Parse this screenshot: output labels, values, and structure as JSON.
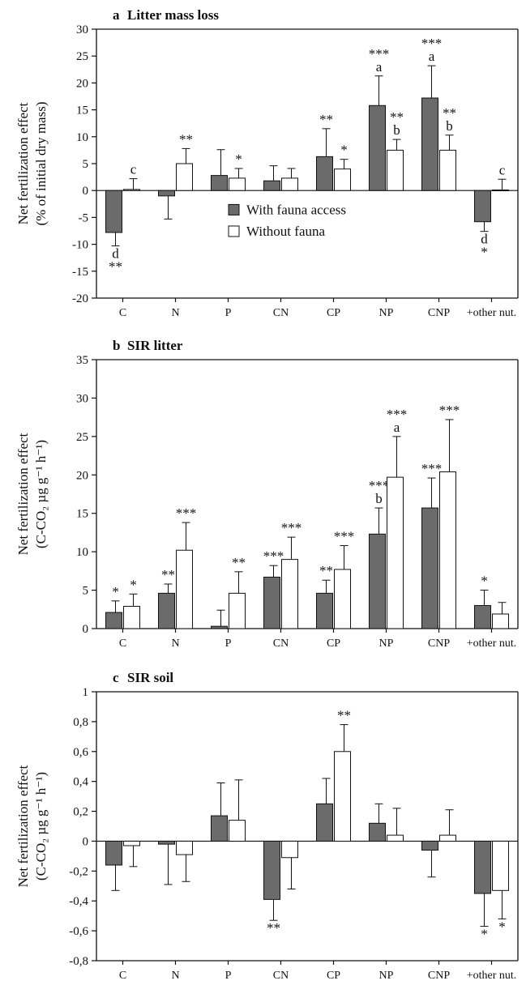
{
  "legend": {
    "with_fauna": "With fauna access",
    "without_fauna": "Without fauna"
  },
  "colors": {
    "with_fauna": "#6b6b6b",
    "without_fauna": "#ffffff",
    "stroke": "#111111"
  },
  "chart_data": [
    {
      "type": "bar",
      "panel_letter": "a",
      "title": "Litter mass loss",
      "ylabel_line1": "Net fertilization effect",
      "ylabel_line2": "(% of initial dry mass)",
      "categories": [
        "C",
        "N",
        "P",
        "CN",
        "CP",
        "NP",
        "CNP",
        "+other nut."
      ],
      "ylim": [
        -20,
        30
      ],
      "yticks": [
        -20,
        -15,
        -10,
        -5,
        0,
        5,
        10,
        15,
        20,
        25,
        30
      ],
      "ytick_labels": [
        "-20",
        "-15",
        "-10",
        "-5",
        "0",
        "5",
        "10",
        "15",
        "20",
        "25",
        "30"
      ],
      "legend_inside": true,
      "series": [
        {
          "name": "With fauna access",
          "values": [
            -7.8,
            -1.0,
            2.8,
            1.8,
            6.3,
            15.8,
            17.2,
            -5.8
          ],
          "errors": [
            2.5,
            4.3,
            4.8,
            2.8,
            5.2,
            5.5,
            6.0,
            1.8
          ],
          "annotations": [
            "d\n**",
            "",
            "",
            "",
            "**",
            "***\na",
            "***\na",
            "d\n*"
          ]
        },
        {
          "name": "Without fauna",
          "values": [
            0.2,
            5.0,
            2.3,
            2.3,
            4.0,
            7.5,
            7.5,
            0.1
          ],
          "errors": [
            2.0,
            2.8,
            1.8,
            1.8,
            1.8,
            2.0,
            2.8,
            2.0
          ],
          "annotations": [
            "c",
            "**",
            "*",
            "",
            "*",
            "**\nb",
            "**\nb",
            "c"
          ]
        }
      ]
    },
    {
      "type": "bar",
      "panel_letter": "b",
      "title": "SIR litter",
      "ylabel_line1": "Net fertilization effect",
      "ylabel_line2": "(C-CO₂ µg g⁻¹ h⁻¹)",
      "categories": [
        "C",
        "N",
        "P",
        "CN",
        "CP",
        "NP",
        "CNP",
        "+other nut."
      ],
      "ylim": [
        0,
        35
      ],
      "yticks": [
        0,
        5,
        10,
        15,
        20,
        25,
        30,
        35
      ],
      "ytick_labels": [
        "0",
        "5",
        "10",
        "15",
        "20",
        "25",
        "30",
        "35"
      ],
      "series": [
        {
          "name": "With fauna access",
          "values": [
            2.1,
            4.6,
            0.3,
            6.7,
            4.6,
            12.3,
            15.7,
            3.0
          ],
          "errors": [
            1.5,
            1.2,
            2.1,
            1.5,
            1.7,
            3.4,
            3.9,
            2.0
          ],
          "annotations": [
            "*",
            "**",
            "",
            "***",
            "**",
            "***\nb",
            "***",
            "*"
          ]
        },
        {
          "name": "Without fauna",
          "values": [
            2.9,
            10.2,
            4.6,
            9.0,
            7.7,
            19.7,
            20.4,
            1.9
          ],
          "errors": [
            1.6,
            3.6,
            2.8,
            2.9,
            3.1,
            5.3,
            6.8,
            1.5
          ],
          "annotations": [
            "*",
            "***",
            "**",
            "***",
            "***",
            "***\na",
            "***",
            ""
          ]
        }
      ]
    },
    {
      "type": "bar",
      "panel_letter": "c",
      "title": "SIR soil",
      "ylabel_line1": "Net fertilization effect",
      "ylabel_line2": "(C-CO₂ µg g⁻¹ h⁻¹)",
      "categories": [
        "C",
        "N",
        "P",
        "CN",
        "CP",
        "NP",
        "CNP",
        "+other nut."
      ],
      "ylim": [
        -0.8,
        1
      ],
      "yticks": [
        -0.8,
        -0.6,
        -0.4,
        -0.2,
        0,
        0.2,
        0.4,
        0.6,
        0.8,
        1
      ],
      "ytick_labels": [
        "-0,8",
        "-0,6",
        "-0,4",
        "-0,2",
        "0",
        "0,2",
        "0,4",
        "0,6",
        "0,8",
        "1"
      ],
      "series": [
        {
          "name": "With fauna access",
          "values": [
            -0.16,
            -0.02,
            0.17,
            -0.39,
            0.25,
            0.12,
            -0.06,
            -0.35
          ],
          "errors": [
            0.17,
            0.27,
            0.22,
            0.14,
            0.17,
            0.13,
            0.18,
            0.22
          ],
          "annotations": [
            "",
            "",
            "",
            "**",
            "",
            "",
            "",
            "*"
          ]
        },
        {
          "name": "Without fauna",
          "values": [
            -0.03,
            -0.09,
            0.14,
            -0.11,
            0.6,
            0.04,
            0.04,
            -0.33
          ],
          "errors": [
            0.14,
            0.18,
            0.27,
            0.21,
            0.18,
            0.18,
            0.17,
            0.19
          ],
          "annotations": [
            "",
            "",
            "",
            "",
            "**",
            "",
            "",
            "*"
          ]
        }
      ]
    }
  ]
}
